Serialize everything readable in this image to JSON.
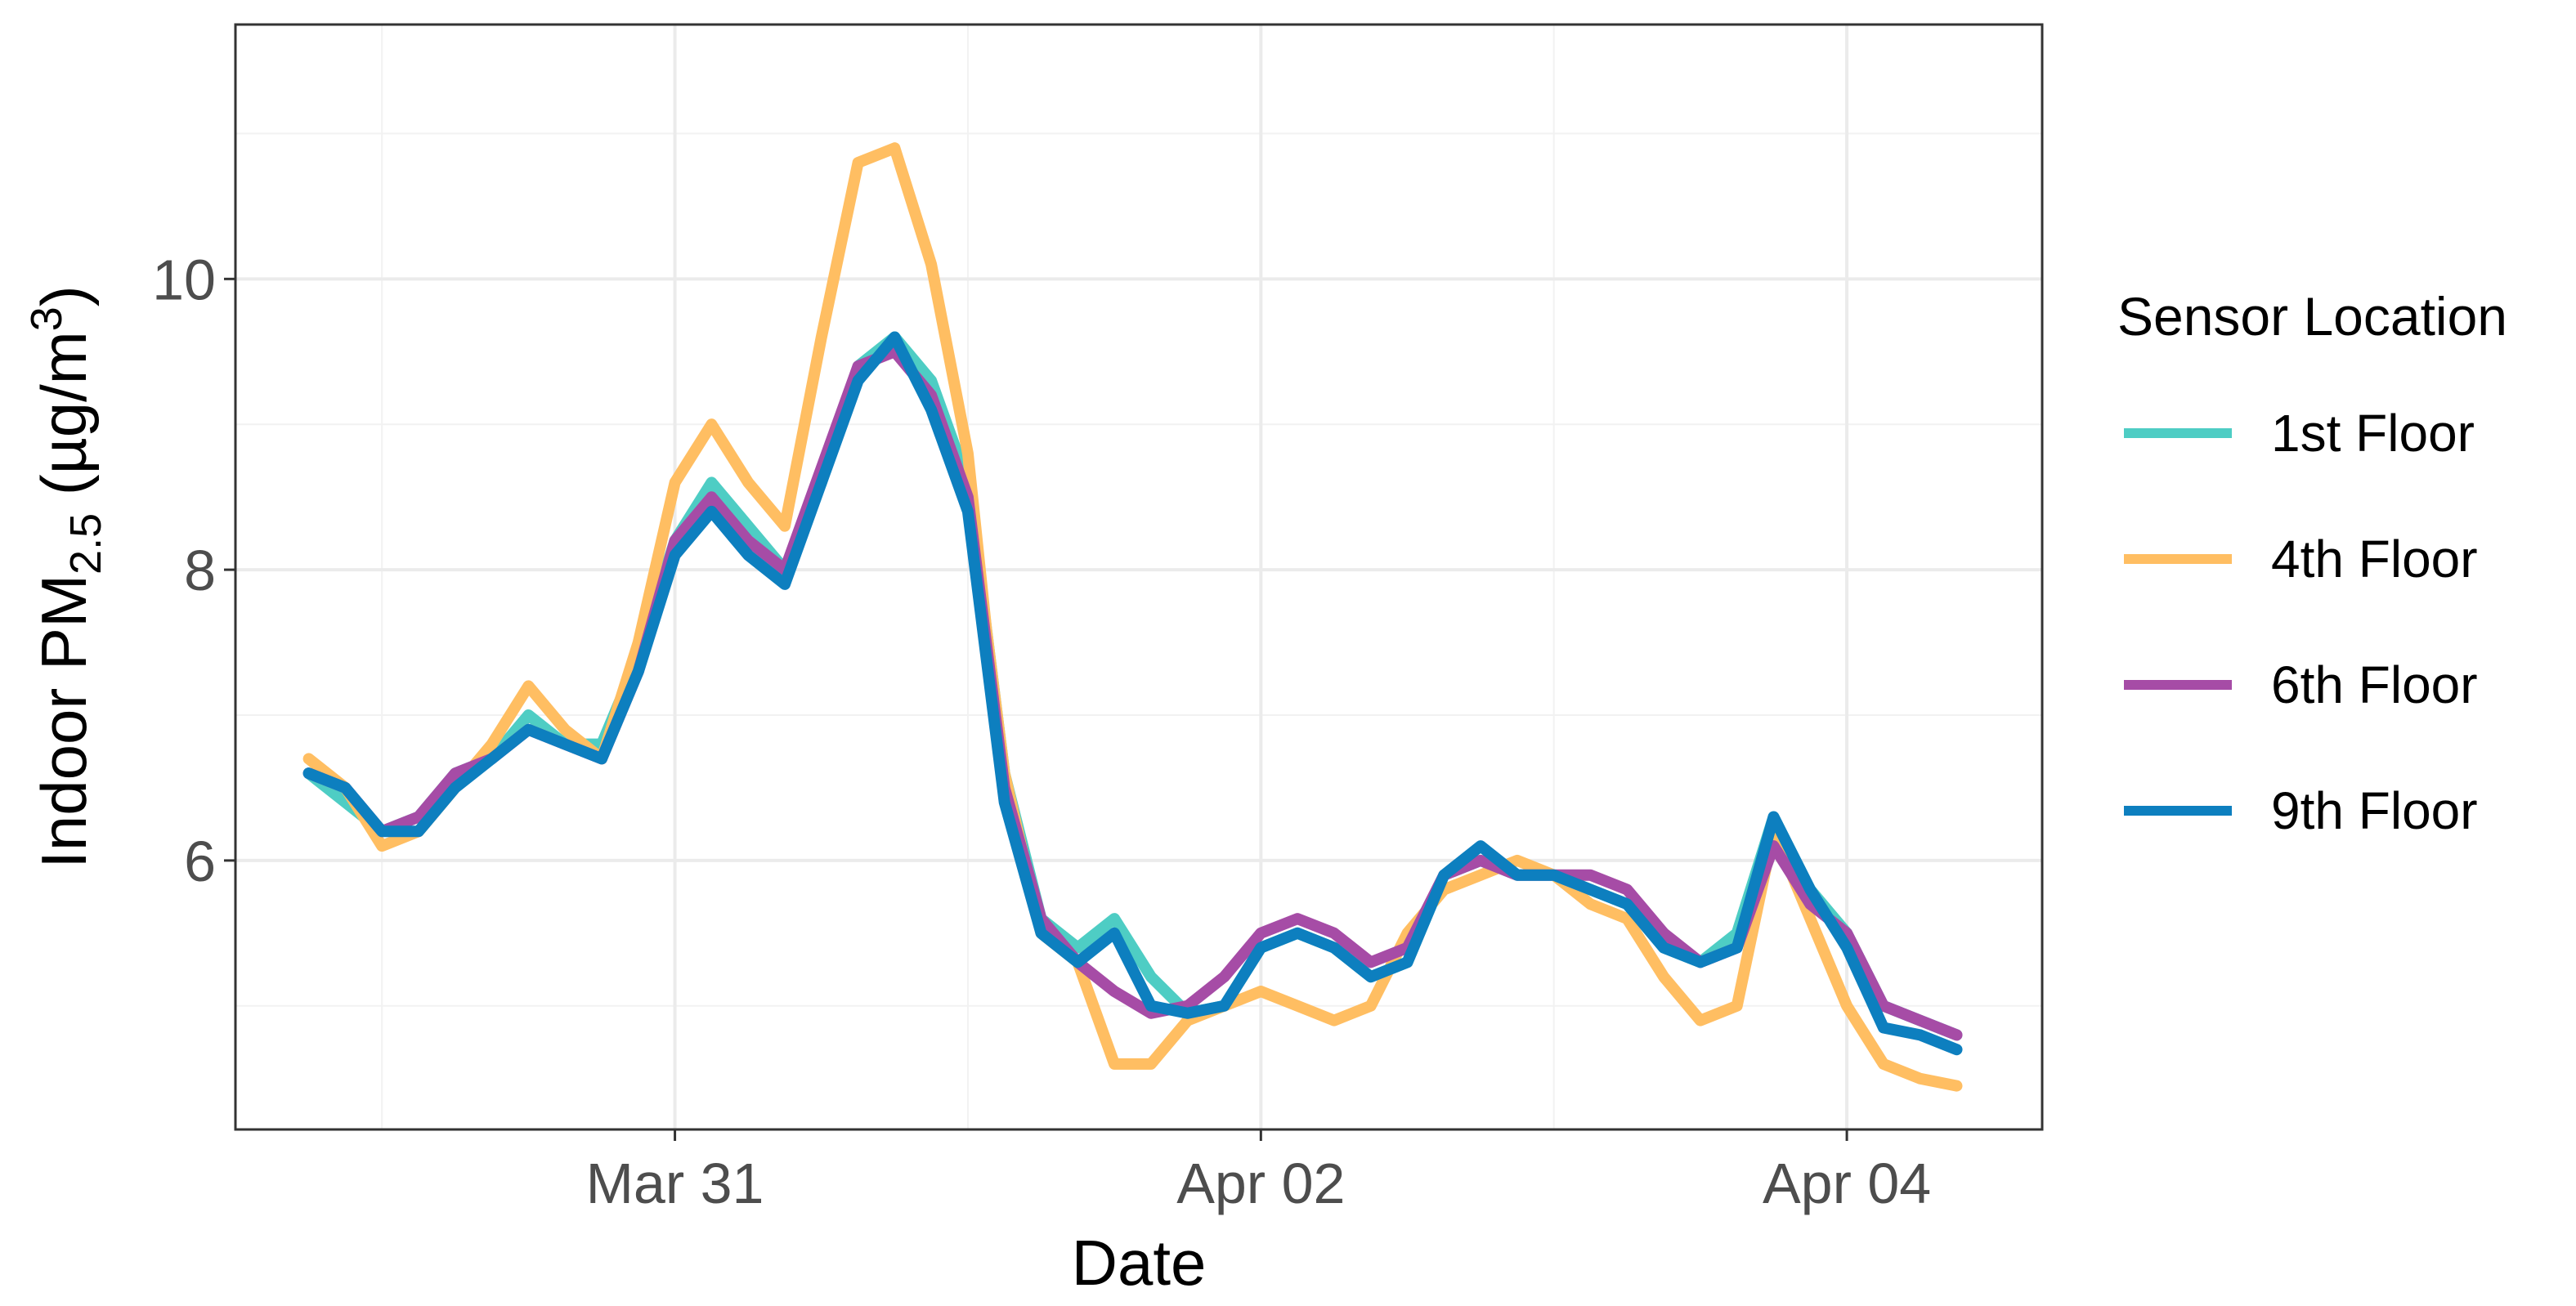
{
  "chart_data": {
    "type": "line",
    "xlabel": "Date",
    "ylabel": {
      "prefix": "Indoor PM",
      "subscript": "2.5",
      "unit_open": " (µg/m",
      "superscript": "3",
      "unit_close": ")"
    },
    "x_ticks": [
      {
        "value": "2021-03-31T00:00",
        "label": "Mar 31"
      },
      {
        "value": "2021-04-02T00:00",
        "label": "Apr 02"
      },
      {
        "value": "2021-04-04T00:00",
        "label": "Apr 04"
      }
    ],
    "x_minor_grid": [
      "2021-03-30T00:00",
      "2021-04-01T00:00",
      "2021-04-03T00:00"
    ],
    "xlim": [
      "2021-03-29T12:00",
      "2021-04-04T16:00"
    ],
    "ylim": [
      4.15,
      11.75
    ],
    "y_ticks": [
      6,
      8,
      10
    ],
    "y_minor_grid": [
      5,
      7,
      9,
      11
    ],
    "grid": true,
    "legend": {
      "title": "Sensor Location",
      "placement": "right"
    },
    "series": [
      {
        "name": "1st Floor",
        "color": "#4ecdc4",
        "x": [
          "2021-03-29T18:00",
          "2021-03-29T21:00",
          "2021-03-30T00:00",
          "2021-03-30T03:00",
          "2021-03-30T06:00",
          "2021-03-30T09:00",
          "2021-03-30T12:00",
          "2021-03-30T15:00",
          "2021-03-30T18:00",
          "2021-03-30T21:00",
          "2021-03-31T00:00",
          "2021-03-31T03:00",
          "2021-03-31T06:00",
          "2021-03-31T09:00",
          "2021-03-31T12:00",
          "2021-03-31T15:00",
          "2021-03-31T18:00",
          "2021-03-31T21:00",
          "2021-04-01T00:00",
          "2021-04-01T01:30",
          "2021-04-01T03:00",
          "2021-04-01T06:00",
          "2021-04-01T09:00",
          "2021-04-01T12:00",
          "2021-04-01T15:00",
          "2021-04-01T18:00",
          "2021-04-01T21:00",
          "2021-04-02T00:00",
          "2021-04-02T03:00",
          "2021-04-02T06:00",
          "2021-04-02T09:00",
          "2021-04-02T12:00",
          "2021-04-02T15:00",
          "2021-04-02T18:00",
          "2021-04-02T21:00",
          "2021-04-03T00:00",
          "2021-04-03T03:00",
          "2021-04-03T06:00",
          "2021-04-03T09:00",
          "2021-04-03T12:00",
          "2021-04-03T15:00",
          "2021-04-03T18:00",
          "2021-04-03T21:00",
          "2021-04-04T00:00",
          "2021-04-04T03:00",
          "2021-04-04T06:00",
          "2021-04-04T09:00"
        ],
        "y": [
          6.6,
          6.4,
          6.2,
          6.3,
          6.6,
          6.7,
          7.0,
          6.8,
          6.8,
          7.4,
          8.2,
          8.6,
          8.3,
          8.0,
          8.6,
          9.4,
          9.6,
          9.3,
          8.6,
          7.6,
          6.6,
          5.6,
          5.4,
          5.6,
          5.2,
          4.95,
          5.0,
          5.4,
          5.5,
          5.4,
          5.2,
          5.3,
          5.9,
          6.0,
          5.9,
          5.9,
          5.8,
          5.7,
          5.4,
          5.3,
          5.5,
          6.3,
          5.8,
          5.5,
          5.0,
          4.9,
          4.8
        ]
      },
      {
        "name": "4th Floor",
        "color": "#ffbe62",
        "x": [
          "2021-03-29T18:00",
          "2021-03-29T21:00",
          "2021-03-30T00:00",
          "2021-03-30T03:00",
          "2021-03-30T06:00",
          "2021-03-30T09:00",
          "2021-03-30T12:00",
          "2021-03-30T15:00",
          "2021-03-30T18:00",
          "2021-03-30T21:00",
          "2021-03-31T00:00",
          "2021-03-31T03:00",
          "2021-03-31T06:00",
          "2021-03-31T09:00",
          "2021-03-31T12:00",
          "2021-03-31T15:00",
          "2021-03-31T18:00",
          "2021-03-31T21:00",
          "2021-04-01T00:00",
          "2021-04-01T01:30",
          "2021-04-01T03:00",
          "2021-04-01T06:00",
          "2021-04-01T09:00",
          "2021-04-01T12:00",
          "2021-04-01T15:00",
          "2021-04-01T18:00",
          "2021-04-01T21:00",
          "2021-04-02T00:00",
          "2021-04-02T03:00",
          "2021-04-02T06:00",
          "2021-04-02T09:00",
          "2021-04-02T12:00",
          "2021-04-02T15:00",
          "2021-04-02T18:00",
          "2021-04-02T21:00",
          "2021-04-03T00:00",
          "2021-04-03T03:00",
          "2021-04-03T06:00",
          "2021-04-03T09:00",
          "2021-04-03T12:00",
          "2021-04-03T15:00",
          "2021-04-03T18:00",
          "2021-04-03T21:00",
          "2021-04-04T00:00",
          "2021-04-04T03:00",
          "2021-04-04T06:00",
          "2021-04-04T09:00"
        ],
        "y": [
          6.7,
          6.5,
          6.1,
          6.2,
          6.5,
          6.8,
          7.2,
          6.9,
          6.7,
          7.5,
          8.6,
          9.0,
          8.6,
          8.3,
          9.6,
          10.8,
          10.9,
          10.1,
          8.8,
          7.6,
          6.6,
          5.5,
          5.3,
          4.6,
          4.6,
          4.9,
          5.0,
          5.1,
          5.0,
          4.9,
          5.0,
          5.5,
          5.8,
          5.9,
          6.0,
          5.9,
          5.7,
          5.6,
          5.2,
          4.9,
          5.0,
          6.2,
          5.6,
          5.0,
          4.6,
          4.5,
          4.45
        ]
      },
      {
        "name": "6th Floor",
        "color": "#a64ca6",
        "x": [
          "2021-03-29T18:00",
          "2021-03-29T21:00",
          "2021-03-30T00:00",
          "2021-03-30T03:00",
          "2021-03-30T06:00",
          "2021-03-30T09:00",
          "2021-03-30T12:00",
          "2021-03-30T15:00",
          "2021-03-30T18:00",
          "2021-03-30T21:00",
          "2021-03-31T00:00",
          "2021-03-31T03:00",
          "2021-03-31T06:00",
          "2021-03-31T09:00",
          "2021-03-31T12:00",
          "2021-03-31T15:00",
          "2021-03-31T18:00",
          "2021-03-31T21:00",
          "2021-04-01T00:00",
          "2021-04-01T01:30",
          "2021-04-01T03:00",
          "2021-04-01T06:00",
          "2021-04-01T09:00",
          "2021-04-01T12:00",
          "2021-04-01T15:00",
          "2021-04-01T18:00",
          "2021-04-01T21:00",
          "2021-04-02T00:00",
          "2021-04-02T03:00",
          "2021-04-02T06:00",
          "2021-04-02T09:00",
          "2021-04-02T12:00",
          "2021-04-02T15:00",
          "2021-04-02T18:00",
          "2021-04-02T21:00",
          "2021-04-03T00:00",
          "2021-04-03T03:00",
          "2021-04-03T06:00",
          "2021-04-03T09:00",
          "2021-04-03T12:00",
          "2021-04-03T15:00",
          "2021-04-03T18:00",
          "2021-04-03T21:00",
          "2021-04-04T00:00",
          "2021-04-04T03:00",
          "2021-04-04T06:00",
          "2021-04-04T09:00"
        ],
        "y": [
          6.6,
          6.5,
          6.2,
          6.3,
          6.6,
          6.7,
          6.9,
          6.8,
          6.7,
          7.3,
          8.2,
          8.5,
          8.2,
          8.0,
          8.7,
          9.4,
          9.5,
          9.2,
          8.5,
          7.5,
          6.5,
          5.6,
          5.3,
          5.1,
          4.95,
          5.0,
          5.2,
          5.5,
          5.6,
          5.5,
          5.3,
          5.4,
          5.9,
          6.0,
          5.9,
          5.9,
          5.9,
          5.8,
          5.5,
          5.3,
          5.4,
          6.1,
          5.7,
          5.5,
          5.0,
          4.9,
          4.8
        ]
      },
      {
        "name": "9th Floor",
        "color": "#0d7fbf",
        "x": [
          "2021-03-29T18:00",
          "2021-03-29T21:00",
          "2021-03-30T00:00",
          "2021-03-30T03:00",
          "2021-03-30T06:00",
          "2021-03-30T09:00",
          "2021-03-30T12:00",
          "2021-03-30T15:00",
          "2021-03-30T18:00",
          "2021-03-30T21:00",
          "2021-03-31T00:00",
          "2021-03-31T03:00",
          "2021-03-31T06:00",
          "2021-03-31T09:00",
          "2021-03-31T12:00",
          "2021-03-31T15:00",
          "2021-03-31T18:00",
          "2021-03-31T21:00",
          "2021-04-01T00:00",
          "2021-04-01T01:30",
          "2021-04-01T03:00",
          "2021-04-01T06:00",
          "2021-04-01T09:00",
          "2021-04-01T12:00",
          "2021-04-01T15:00",
          "2021-04-01T18:00",
          "2021-04-01T21:00",
          "2021-04-02T00:00",
          "2021-04-02T03:00",
          "2021-04-02T06:00",
          "2021-04-02T09:00",
          "2021-04-02T12:00",
          "2021-04-02T15:00",
          "2021-04-02T18:00",
          "2021-04-02T21:00",
          "2021-04-03T00:00",
          "2021-04-03T03:00",
          "2021-04-03T06:00",
          "2021-04-03T09:00",
          "2021-04-03T12:00",
          "2021-04-03T15:00",
          "2021-04-03T18:00",
          "2021-04-03T21:00",
          "2021-04-04T00:00",
          "2021-04-04T03:00",
          "2021-04-04T06:00",
          "2021-04-04T09:00"
        ],
        "y": [
          6.6,
          6.5,
          6.2,
          6.2,
          6.5,
          6.7,
          6.9,
          6.8,
          6.7,
          7.3,
          8.1,
          8.4,
          8.1,
          7.9,
          8.6,
          9.3,
          9.6,
          9.1,
          8.4,
          7.4,
          6.4,
          5.5,
          5.3,
          5.5,
          5.0,
          4.95,
          5.0,
          5.4,
          5.5,
          5.4,
          5.2,
          5.3,
          5.9,
          6.1,
          5.9,
          5.9,
          5.8,
          5.7,
          5.4,
          5.3,
          5.4,
          6.3,
          5.8,
          5.4,
          4.85,
          4.8,
          4.7
        ]
      }
    ]
  }
}
